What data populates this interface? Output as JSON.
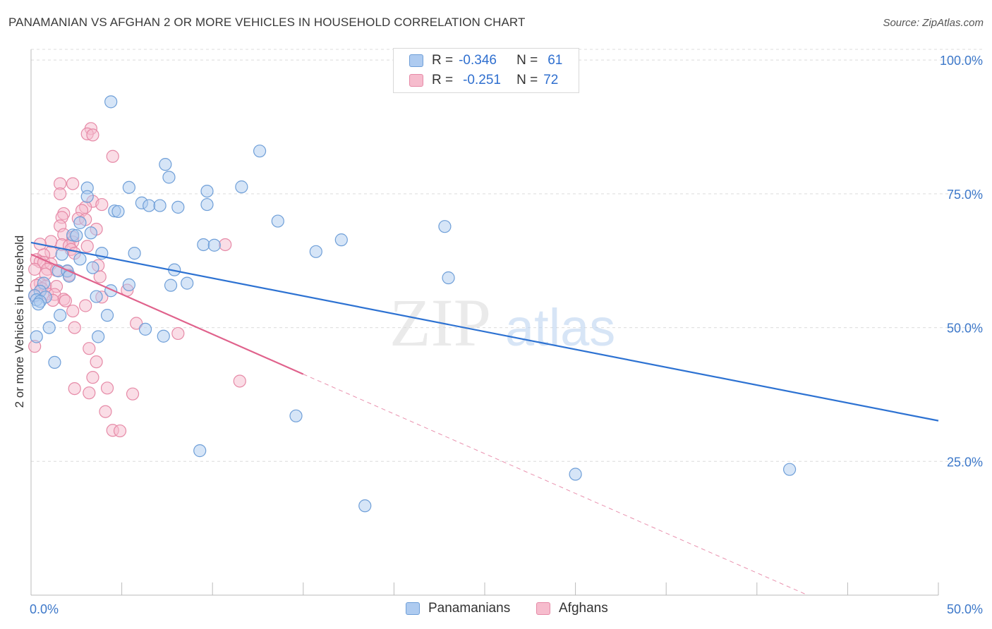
{
  "header": {
    "title": "PANAMANIAN VS AFGHAN 2 OR MORE VEHICLES IN HOUSEHOLD CORRELATION CHART",
    "source": "Source: ZipAtlas.com"
  },
  "legend_top": {
    "rows": [
      {
        "r_label": "R =",
        "r_value": "-0.346",
        "n_label": "N =",
        "n_value": "61"
      },
      {
        "r_label": "R =",
        "r_value": "-0.251",
        "n_label": "N =",
        "n_value": "72"
      }
    ]
  },
  "watermark": {
    "zip": "ZIP",
    "atlas": "atlas"
  },
  "colors": {
    "blue_fill": "#aecbf0",
    "blue_stroke": "#6f9fd8",
    "blue_line": "#2d72d2",
    "pink_fill": "#f6bccd",
    "pink_stroke": "#e68aa7",
    "pink_line": "#e0628c",
    "axis_text": "#3d78c9"
  },
  "chart_data": {
    "type": "scatter",
    "title": "PANAMANIAN VS AFGHAN 2 OR MORE VEHICLES IN HOUSEHOLD CORRELATION CHART",
    "ylabel": "2 or more Vehicles in Household",
    "xlabel": "",
    "xlim": [
      0,
      50
    ],
    "ylim": [
      0,
      102
    ],
    "x_tick_labels": [
      "0.0%",
      "50.0%"
    ],
    "y_ticks": [
      25,
      50,
      75,
      100
    ],
    "y_tick_labels": [
      "25.0%",
      "50.0%",
      "75.0%",
      "100.0%"
    ],
    "grid": "horizontal dashed",
    "legend_position": "bottom-center",
    "series": [
      {
        "name": "Panamanians",
        "r": -0.346,
        "n": 61,
        "trend": {
          "x": [
            0,
            50
          ],
          "y": [
            65.9,
            32.6
          ]
        },
        "points": [
          [
            4.4,
            92.2
          ],
          [
            12.6,
            83.0
          ],
          [
            7.4,
            80.5
          ],
          [
            7.6,
            78.1
          ],
          [
            3.1,
            76.1
          ],
          [
            5.4,
            76.2
          ],
          [
            11.6,
            76.3
          ],
          [
            9.7,
            75.5
          ],
          [
            3.1,
            74.5
          ],
          [
            6.1,
            73.3
          ],
          [
            6.5,
            72.8
          ],
          [
            7.1,
            72.8
          ],
          [
            8.1,
            72.5
          ],
          [
            9.7,
            73.0
          ],
          [
            4.6,
            71.8
          ],
          [
            4.8,
            71.7
          ],
          [
            13.6,
            69.9
          ],
          [
            2.7,
            69.6
          ],
          [
            22.8,
            68.9
          ],
          [
            2.3,
            67.3
          ],
          [
            2.5,
            67.2
          ],
          [
            3.3,
            67.7
          ],
          [
            17.1,
            66.4
          ],
          [
            9.5,
            65.5
          ],
          [
            10.1,
            65.4
          ],
          [
            3.9,
            63.9
          ],
          [
            5.7,
            63.9
          ],
          [
            15.7,
            64.2
          ],
          [
            1.7,
            63.7
          ],
          [
            2.7,
            62.8
          ],
          [
            3.4,
            61.2
          ],
          [
            7.9,
            60.8
          ],
          [
            1.5,
            60.6
          ],
          [
            2.0,
            60.6
          ],
          [
            2.1,
            59.6
          ],
          [
            23.0,
            59.3
          ],
          [
            0.7,
            58.3
          ],
          [
            5.4,
            58.0
          ],
          [
            7.7,
            57.9
          ],
          [
            8.6,
            58.3
          ],
          [
            0.5,
            56.8
          ],
          [
            4.4,
            56.9
          ],
          [
            0.2,
            56.0
          ],
          [
            0.8,
            55.7
          ],
          [
            0.3,
            55.2
          ],
          [
            3.6,
            55.8
          ],
          [
            0.5,
            54.9
          ],
          [
            0.4,
            54.4
          ],
          [
            1.6,
            52.3
          ],
          [
            4.2,
            52.3
          ],
          [
            1.0,
            50.0
          ],
          [
            6.3,
            49.7
          ],
          [
            3.7,
            48.3
          ],
          [
            7.3,
            48.4
          ],
          [
            0.3,
            48.3
          ],
          [
            1.3,
            43.5
          ],
          [
            14.6,
            33.5
          ],
          [
            9.3,
            27.0
          ],
          [
            30.0,
            22.6
          ],
          [
            41.8,
            23.5
          ],
          [
            18.4,
            16.7
          ]
        ]
      },
      {
        "name": "Afghans",
        "r": -0.251,
        "n": 72,
        "trend": {
          "x": [
            0,
            15
          ],
          "y": [
            63.7,
            41.3
          ]
        },
        "trend_dashed": {
          "x": [
            15,
            42.8
          ],
          "y": [
            41.3,
            0
          ]
        },
        "points": [
          [
            3.3,
            87.2
          ],
          [
            3.1,
            86.2
          ],
          [
            3.4,
            86.0
          ],
          [
            4.5,
            82.0
          ],
          [
            1.6,
            76.9
          ],
          [
            2.3,
            76.9
          ],
          [
            1.6,
            75.0
          ],
          [
            3.4,
            73.6
          ],
          [
            3.9,
            73.0
          ],
          [
            3.0,
            72.5
          ],
          [
            2.8,
            71.9
          ],
          [
            1.8,
            71.3
          ],
          [
            1.7,
            70.6
          ],
          [
            2.6,
            70.4
          ],
          [
            3.0,
            70.2
          ],
          [
            1.6,
            69.0
          ],
          [
            3.6,
            68.4
          ],
          [
            1.8,
            67.4
          ],
          [
            2.3,
            66.9
          ],
          [
            1.1,
            66.1
          ],
          [
            2.3,
            66.0
          ],
          [
            0.5,
            65.6
          ],
          [
            1.7,
            65.5
          ],
          [
            2.1,
            65.3
          ],
          [
            3.1,
            65.2
          ],
          [
            10.7,
            65.5
          ],
          [
            2.2,
            64.6
          ],
          [
            1.1,
            64.1
          ],
          [
            2.4,
            63.9
          ],
          [
            0.7,
            63.6
          ],
          [
            0.3,
            62.7
          ],
          [
            0.5,
            62.3
          ],
          [
            0.7,
            62.2
          ],
          [
            1.1,
            61.9
          ],
          [
            3.7,
            61.6
          ],
          [
            0.2,
            60.9
          ],
          [
            0.9,
            60.9
          ],
          [
            1.4,
            60.7
          ],
          [
            2.0,
            60.5
          ],
          [
            0.8,
            60.0
          ],
          [
            2.1,
            59.8
          ],
          [
            3.8,
            59.5
          ],
          [
            0.5,
            58.3
          ],
          [
            0.3,
            57.9
          ],
          [
            0.8,
            57.7
          ],
          [
            0.6,
            57.3
          ],
          [
            1.4,
            57.7
          ],
          [
            0.9,
            56.3
          ],
          [
            1.3,
            56.2
          ],
          [
            0.2,
            55.9
          ],
          [
            1.8,
            55.3
          ],
          [
            1.2,
            55.1
          ],
          [
            1.9,
            55.0
          ],
          [
            3.9,
            55.7
          ],
          [
            3.0,
            54.1
          ],
          [
            2.3,
            53.1
          ],
          [
            2.4,
            50.0
          ],
          [
            5.8,
            50.8
          ],
          [
            8.1,
            48.9
          ],
          [
            0.2,
            46.5
          ],
          [
            3.2,
            46.1
          ],
          [
            3.6,
            43.6
          ],
          [
            3.4,
            40.7
          ],
          [
            11.5,
            40.0
          ],
          [
            2.4,
            38.6
          ],
          [
            3.2,
            37.8
          ],
          [
            4.2,
            38.7
          ],
          [
            5.6,
            37.6
          ],
          [
            4.1,
            34.3
          ],
          [
            4.5,
            30.8
          ],
          [
            4.9,
            30.7
          ],
          [
            5.3,
            57.0
          ]
        ]
      }
    ]
  }
}
